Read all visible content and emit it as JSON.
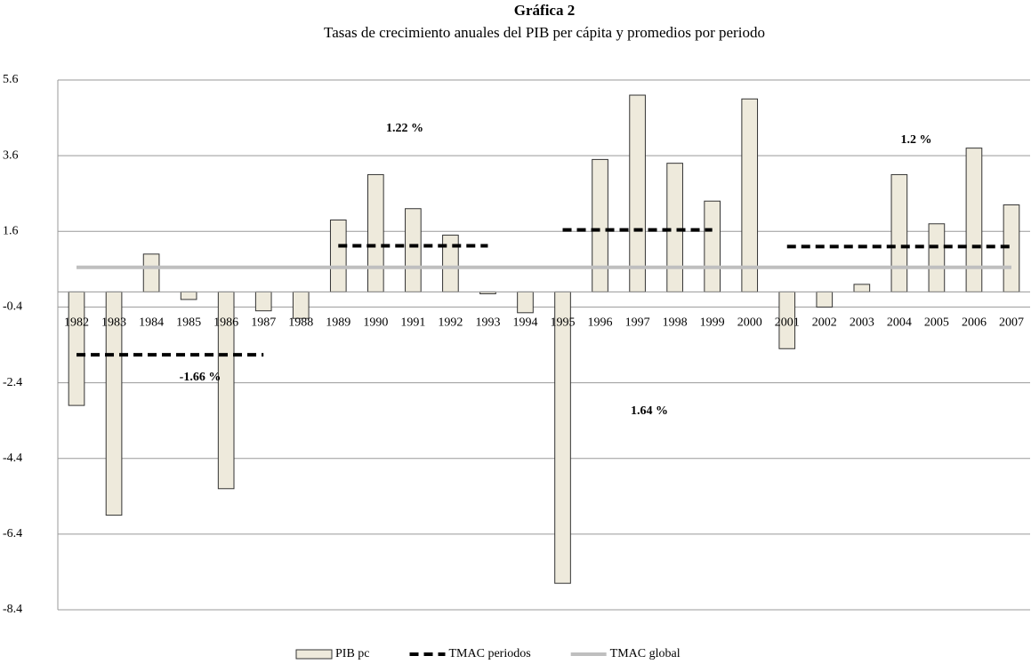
{
  "chart_data": {
    "type": "bar",
    "title": "Gráfica 2",
    "subtitle": "Tasas de crecimiento anuales del PIB per cápita y promedios por periodo",
    "categories": [
      "1982",
      "1983",
      "1984",
      "1985",
      "1986",
      "1987",
      "1988",
      "1989",
      "1990",
      "1991",
      "1992",
      "1993",
      "1994",
      "1995",
      "1996",
      "1997",
      "1998",
      "1999",
      "2000",
      "2001",
      "2002",
      "2003",
      "2004",
      "2005",
      "2006",
      "2007"
    ],
    "series": [
      {
        "name": "PIB pc",
        "type": "bar",
        "color": "#eeeadc",
        "values": [
          -3.0,
          -5.9,
          1.0,
          -0.2,
          -5.2,
          -0.5,
          -0.7,
          1.9,
          3.1,
          2.2,
          1.5,
          -0.05,
          -0.55,
          -7.7,
          3.5,
          5.2,
          3.4,
          2.4,
          5.1,
          -1.5,
          -0.4,
          0.2,
          3.1,
          1.8,
          3.8,
          2.3
        ]
      },
      {
        "name": "TMAC periodos",
        "type": "line",
        "color": "#000000",
        "dashed": true,
        "values": [
          -1.66,
          -1.66,
          -1.66,
          -1.66,
          -1.66,
          -1.66,
          null,
          1.22,
          1.22,
          1.22,
          1.22,
          1.22,
          null,
          1.64,
          1.64,
          1.64,
          1.64,
          1.64,
          null,
          1.2,
          1.2,
          1.2,
          1.2,
          1.2,
          1.2,
          1.2
        ]
      },
      {
        "name": "TMAC global",
        "type": "line",
        "color": "#bfbfbf",
        "dashed": false,
        "values": [
          0.65,
          0.65,
          0.65,
          0.65,
          0.65,
          0.65,
          0.65,
          0.65,
          0.65,
          0.65,
          0.65,
          0.65,
          0.65,
          0.65,
          0.65,
          0.65,
          0.65,
          0.65,
          0.65,
          0.65,
          0.65,
          0.65,
          0.65,
          0.65,
          0.65,
          0.65
        ]
      }
    ],
    "annotations": [
      "-1.66 %",
      "1.22 %",
      "1.64 %",
      "1.2 %"
    ],
    "ylim": [
      -8.4,
      5.6
    ],
    "yticks": [
      5.6,
      3.6,
      1.6,
      -0.4,
      -2.4,
      -4.4,
      -6.4,
      -8.4
    ],
    "grid": true,
    "legend": "bottom"
  }
}
